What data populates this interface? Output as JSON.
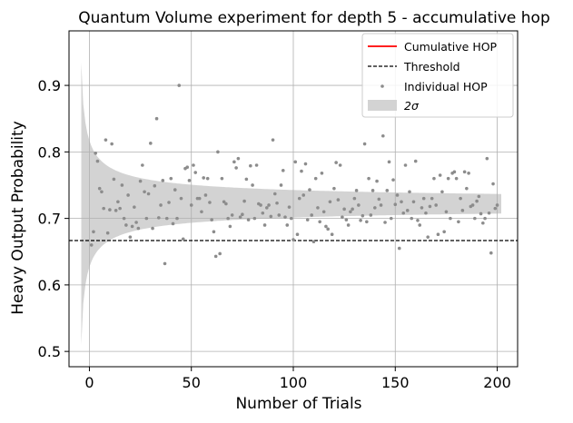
{
  "chart_data": {
    "type": "scatter",
    "title": "Quantum Volume experiment for depth 5 - accumulative hop",
    "xlabel": "Number of Trials",
    "ylabel": "Heavy Output Probability",
    "xlim": [
      -10,
      210
    ],
    "ylim": [
      0.477,
      0.982
    ],
    "xticks": [
      0,
      50,
      100,
      150,
      200
    ],
    "yticks": [
      0.5,
      0.6,
      0.7,
      0.8,
      0.9
    ],
    "xtick_labels": [
      "0",
      "50",
      "100",
      "150",
      "200"
    ],
    "ytick_labels": [
      "0.5",
      "0.6",
      "0.7",
      "0.8",
      "0.9"
    ],
    "grid": true,
    "legend_position": "top-right",
    "threshold": 0.6667,
    "cumulative_hop": {
      "name": "Cumulative HOP",
      "color": "#e41a1c",
      "mean": 0.722
    },
    "series": [
      {
        "name": "Cumulative HOP",
        "kind": "line",
        "color": "#ff0000"
      },
      {
        "name": "Threshold",
        "kind": "dashed-line",
        "color": "#000000"
      },
      {
        "name": "Individual HOP",
        "kind": "points",
        "color": "#8c8c8c"
      },
      {
        "name": "2σ",
        "kind": "band",
        "color": "#d3d3d3"
      }
    ],
    "band": {
      "center": 0.722,
      "sigma_scale": 0.034
    },
    "individual_hop": {
      "x": [
        1,
        2,
        3,
        4,
        5,
        6,
        7,
        8,
        9,
        10,
        11,
        12,
        13,
        14,
        15,
        16,
        17,
        18,
        19,
        20,
        21,
        22,
        23,
        24,
        25,
        26,
        27,
        28,
        29,
        30,
        31,
        32,
        33,
        34,
        35,
        36,
        37,
        38,
        39,
        40,
        41,
        42,
        43,
        44,
        45,
        46,
        47,
        48,
        49,
        50,
        51,
        52,
        53,
        54,
        55,
        56,
        57,
        58,
        59,
        60,
        61,
        62,
        63,
        64,
        65,
        66,
        67,
        68,
        69,
        70,
        71,
        72,
        73,
        74,
        75,
        76,
        77,
        78,
        79,
        80,
        81,
        82,
        83,
        84,
        85,
        86,
        87,
        88,
        89,
        90,
        91,
        92,
        93,
        94,
        95,
        96,
        97,
        98,
        99,
        100,
        101,
        102,
        103,
        104,
        105,
        106,
        107,
        108,
        109,
        110,
        111,
        112,
        113,
        114,
        115,
        116,
        117,
        118,
        119,
        120,
        121,
        122,
        123,
        124,
        125,
        126,
        127,
        128,
        129,
        130,
        131,
        132,
        133,
        134,
        135,
        136,
        137,
        138,
        139,
        140,
        141,
        142,
        143,
        144,
        145,
        146,
        147,
        148,
        149,
        150,
        151,
        152,
        153,
        154,
        155,
        156,
        157,
        158,
        159,
        160,
        161,
        162,
        163,
        164,
        165,
        166,
        167,
        168,
        169,
        170,
        171,
        172,
        173,
        174,
        175,
        176,
        177,
        178,
        179,
        180,
        181,
        182,
        183,
        184,
        185,
        186,
        187,
        188,
        189,
        190,
        191,
        192,
        193,
        194,
        195,
        196,
        197,
        198,
        199,
        200
      ],
      "y": [
        0.66,
        0.68,
        0.798,
        0.786,
        0.745,
        0.74,
        0.715,
        0.818,
        0.678,
        0.713,
        0.812,
        0.759,
        0.712,
        0.725,
        0.715,
        0.75,
        0.7,
        0.69,
        0.735,
        0.672,
        0.688,
        0.717,
        0.694,
        0.685,
        0.756,
        0.78,
        0.74,
        0.7,
        0.737,
        0.813,
        0.685,
        0.749,
        0.85,
        0.701,
        0.72,
        0.757,
        0.632,
        0.7,
        0.724,
        0.76,
        0.692,
        0.743,
        0.7,
        0.9,
        0.73,
        0.669,
        0.775,
        0.777,
        0.757,
        0.72,
        0.78,
        0.769,
        0.73,
        0.73,
        0.71,
        0.761,
        0.735,
        0.76,
        0.724,
        0.698,
        0.68,
        0.643,
        0.8,
        0.647,
        0.76,
        0.725,
        0.722,
        0.7,
        0.688,
        0.705,
        0.785,
        0.776,
        0.79,
        0.702,
        0.706,
        0.726,
        0.759,
        0.698,
        0.779,
        0.75,
        0.7,
        0.78,
        0.722,
        0.72,
        0.708,
        0.69,
        0.716,
        0.72,
        0.703,
        0.818,
        0.737,
        0.723,
        0.705,
        0.75,
        0.772,
        0.702,
        0.69,
        0.717,
        0.7,
        0.668,
        0.785,
        0.676,
        0.73,
        0.771,
        0.735,
        0.782,
        0.698,
        0.743,
        0.705,
        0.665,
        0.76,
        0.716,
        0.695,
        0.768,
        0.71,
        0.688,
        0.684,
        0.725,
        0.676,
        0.745,
        0.784,
        0.728,
        0.78,
        0.702,
        0.714,
        0.698,
        0.69,
        0.71,
        0.714,
        0.73,
        0.742,
        0.72,
        0.697,
        0.704,
        0.812,
        0.695,
        0.76,
        0.705,
        0.742,
        0.716,
        0.756,
        0.729,
        0.72,
        0.824,
        0.694,
        0.742,
        0.785,
        0.7,
        0.758,
        0.721,
        0.735,
        0.655,
        0.725,
        0.708,
        0.78,
        0.712,
        0.74,
        0.7,
        0.725,
        0.786,
        0.697,
        0.69,
        0.716,
        0.73,
        0.708,
        0.672,
        0.718,
        0.73,
        0.76,
        0.72,
        0.676,
        0.765,
        0.74,
        0.68,
        0.71,
        0.76,
        0.7,
        0.768,
        0.77,
        0.76,
        0.695,
        0.73,
        0.712,
        0.77,
        0.745,
        0.768,
        0.718,
        0.72,
        0.7,
        0.726,
        0.733,
        0.707,
        0.693,
        0.7,
        0.79,
        0.708,
        0.648,
        0.752,
        0.715,
        0.72
      ]
    }
  }
}
